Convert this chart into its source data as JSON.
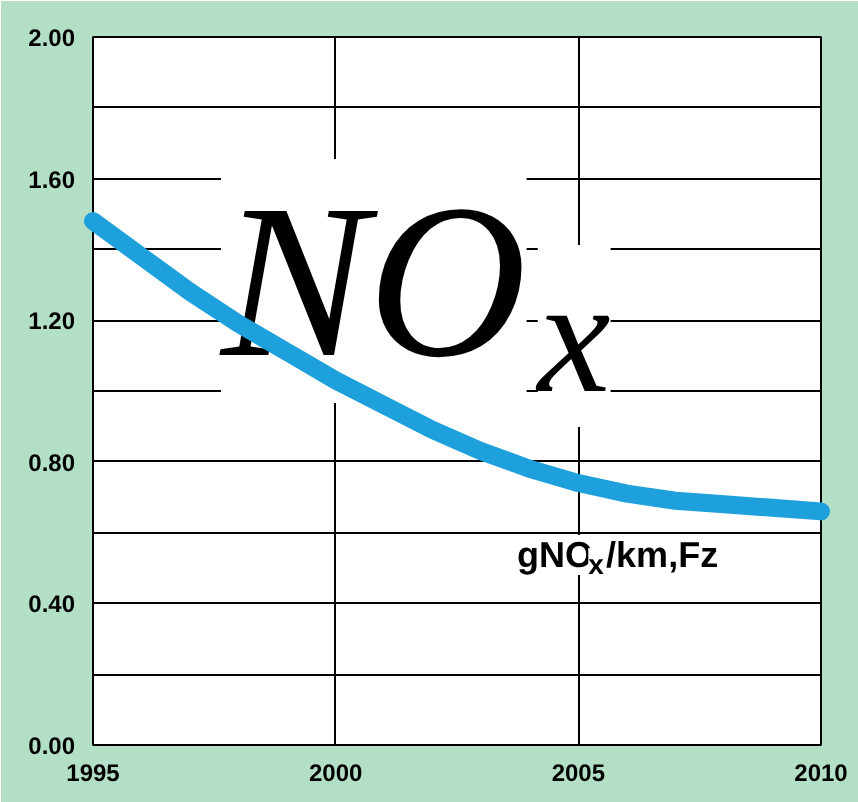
{
  "chart_data": {
    "type": "line",
    "x": [
      1995,
      1996,
      1997,
      1998,
      1999,
      2000,
      2001,
      2002,
      2003,
      2004,
      2005,
      2006,
      2007,
      2008,
      2009,
      2010
    ],
    "series": [
      {
        "color": "#1ea0dc",
        "values": [
          1.48,
          1.38,
          1.28,
          1.19,
          1.11,
          1.03,
          0.96,
          0.89,
          0.83,
          0.78,
          0.74,
          0.71,
          0.69,
          0.68,
          0.67,
          0.66
        ]
      }
    ],
    "xlim": [
      1995,
      2010
    ],
    "xticks": [
      1995,
      2000,
      2005,
      2010
    ],
    "ylim": [
      0,
      2
    ],
    "yticks": [
      {
        "value": 0,
        "label": "0.00"
      },
      {
        "value": 0.2,
        "label": null
      },
      {
        "value": 0.4,
        "label": "0.40"
      },
      {
        "value": 0.6,
        "label": null
      },
      {
        "value": 0.8,
        "label": "0.80"
      },
      {
        "value": 1.0,
        "label": null
      },
      {
        "value": 1.2,
        "label": "1.20"
      },
      {
        "value": 1.4,
        "label": null
      },
      {
        "value": 1.6,
        "label": "1.60"
      },
      {
        "value": 1.8,
        "label": null
      },
      {
        "value": 2.0,
        "label": "2.00"
      }
    ],
    "grid": true,
    "marker": "none",
    "line_style": "solid",
    "annotations": [
      "NO$_{x}$",
      "gNO$_{x}$/km,Fz"
    ]
  }
}
